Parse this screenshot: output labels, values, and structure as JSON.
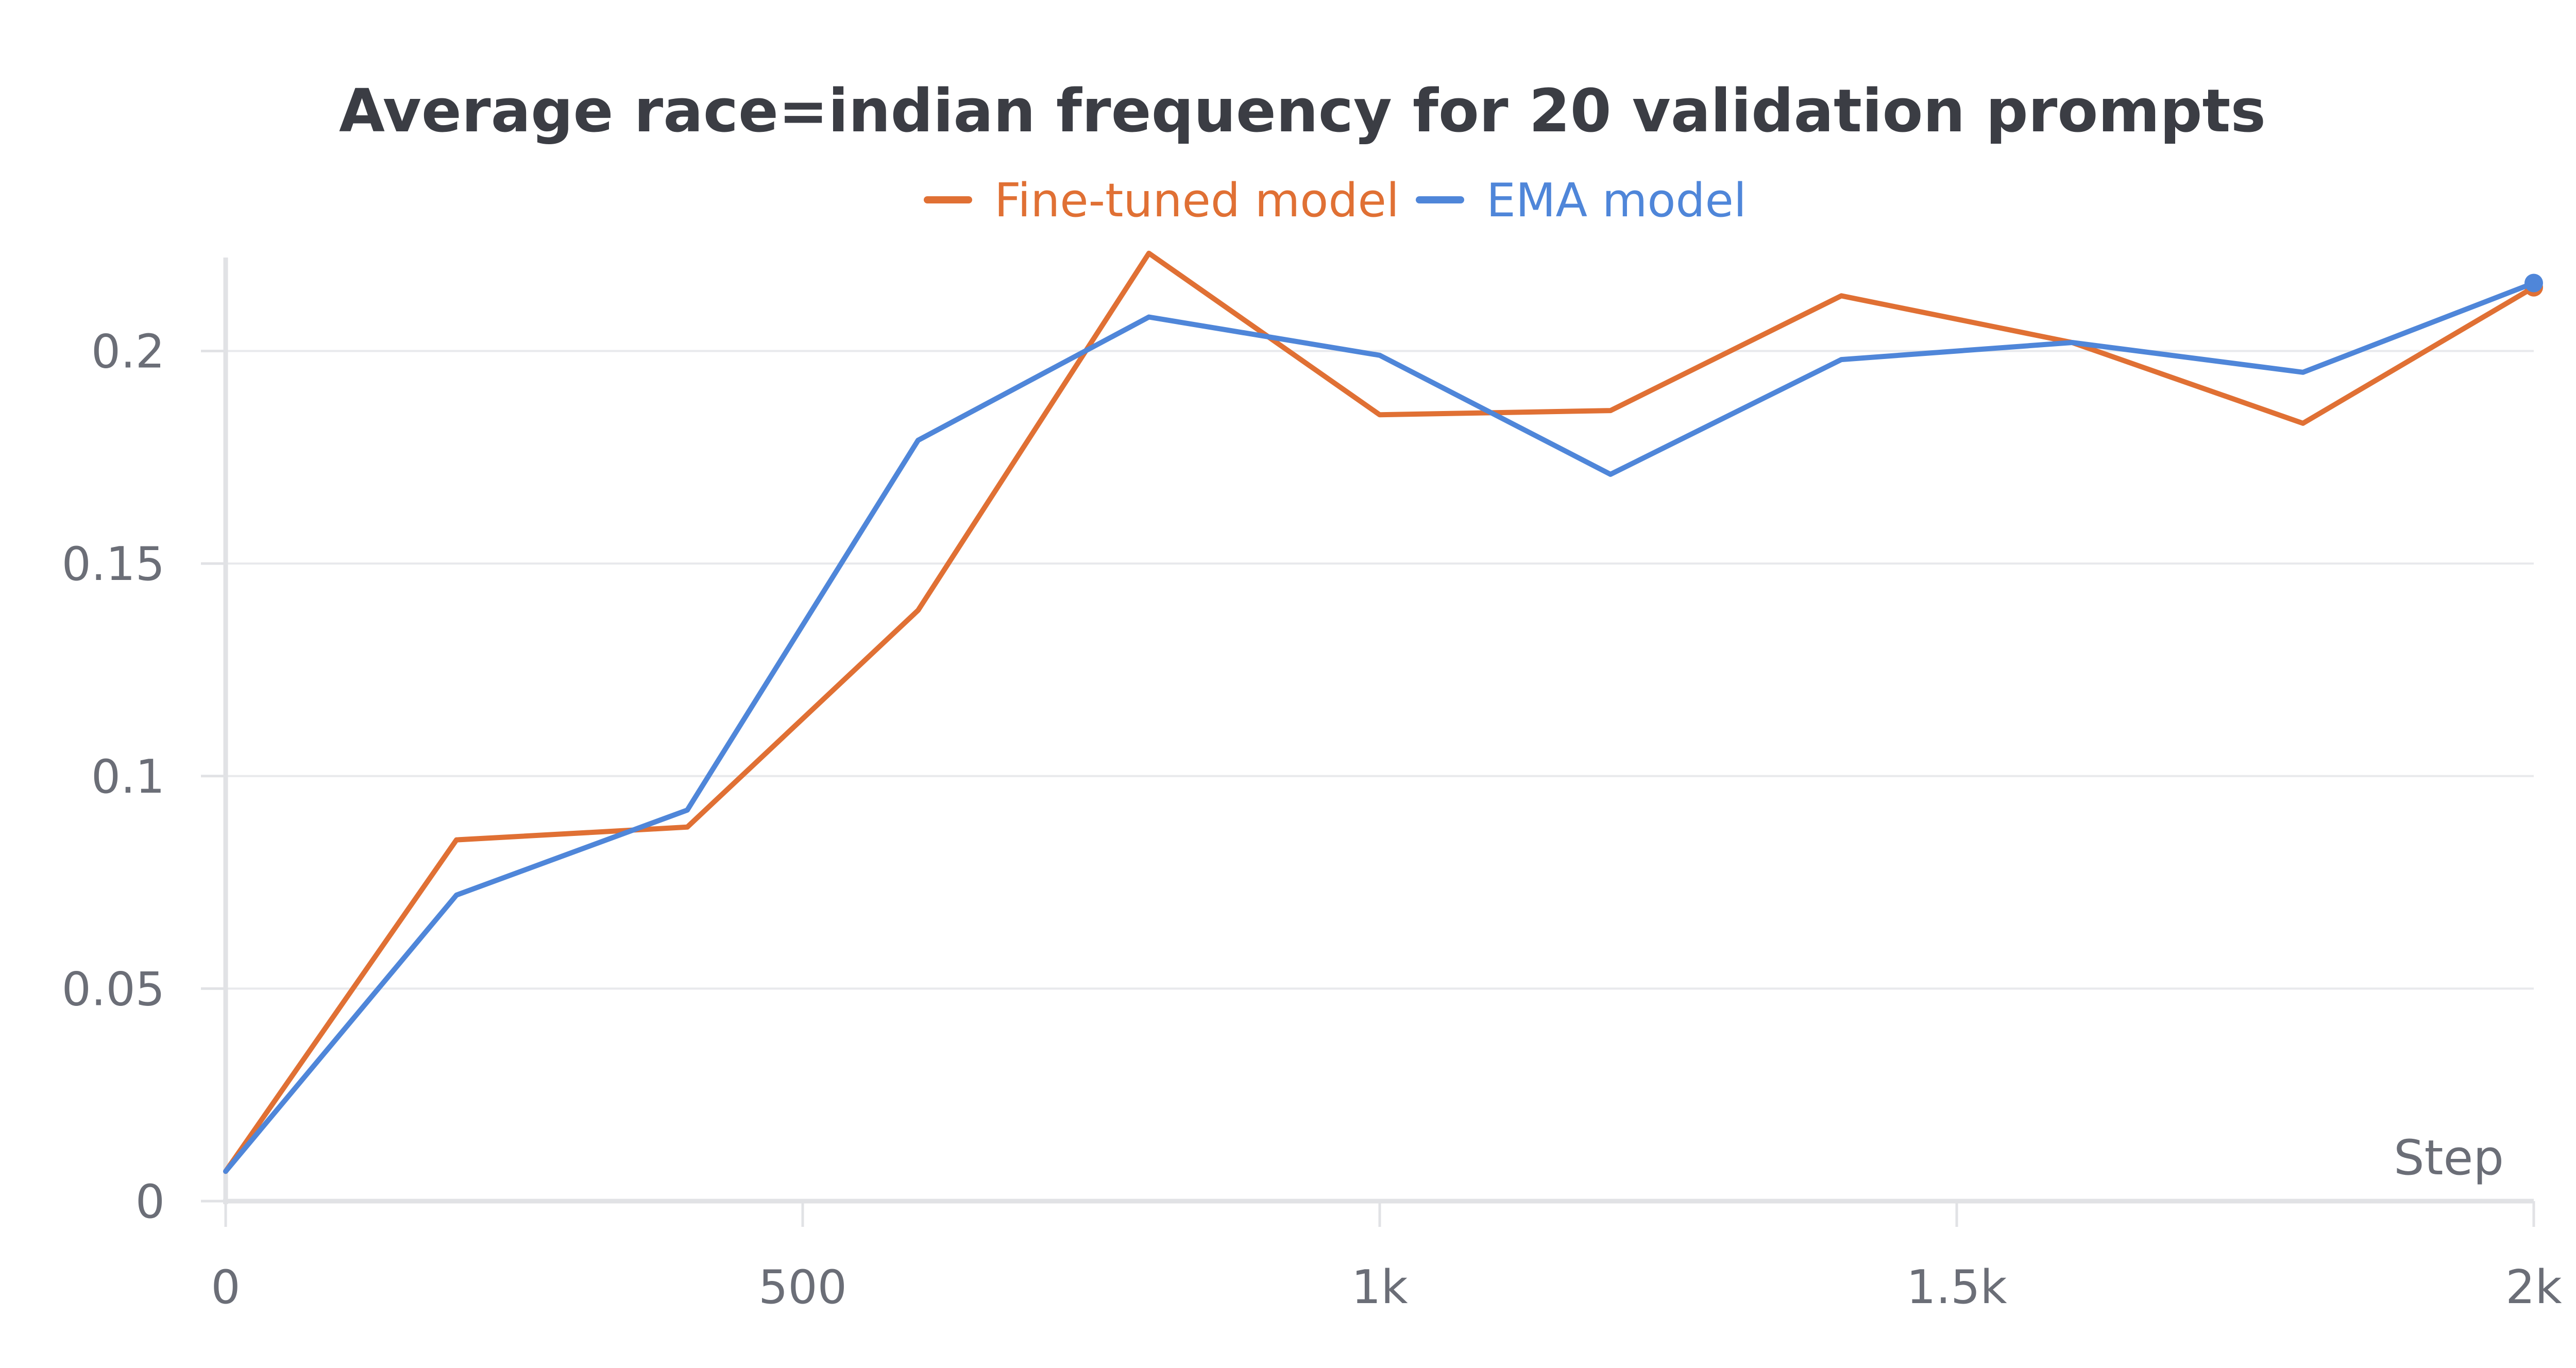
{
  "chart_data": {
    "type": "line",
    "title": "Average race=indian frequency for 20 validation prompts",
    "xlabel": "Step",
    "ylabel": "",
    "x": [
      0,
      200,
      400,
      600,
      800,
      1000,
      1200,
      1400,
      1600,
      1800,
      2000
    ],
    "xlim": [
      0,
      2000
    ],
    "ylim": [
      0,
      0.222
    ],
    "x_ticks": [
      {
        "value": 0,
        "label": "0"
      },
      {
        "value": 500,
        "label": "500"
      },
      {
        "value": 1000,
        "label": "1k"
      },
      {
        "value": 1500,
        "label": "1.5k"
      },
      {
        "value": 2000,
        "label": "2k"
      }
    ],
    "y_ticks": [
      {
        "value": 0,
        "label": "0"
      },
      {
        "value": 0.05,
        "label": "0.05"
      },
      {
        "value": 0.1,
        "label": "0.1"
      },
      {
        "value": 0.15,
        "label": "0.15"
      },
      {
        "value": 0.2,
        "label": "0.2"
      }
    ],
    "grid": true,
    "legend_position": "top-center",
    "series": [
      {
        "name": "Fine-tuned model",
        "color": "#e07034",
        "values": [
          0.007,
          0.085,
          0.088,
          0.139,
          0.223,
          0.185,
          0.186,
          0.213,
          0.202,
          0.183,
          0.215
        ]
      },
      {
        "name": "EMA model",
        "color": "#4f86d9",
        "values": [
          0.007,
          0.072,
          0.092,
          0.179,
          0.208,
          0.199,
          0.171,
          0.198,
          0.202,
          0.195,
          0.216
        ]
      }
    ]
  }
}
